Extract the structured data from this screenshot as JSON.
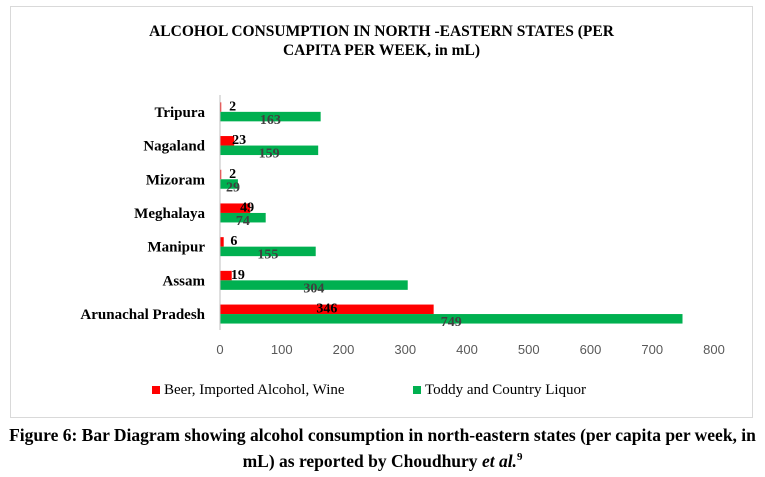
{
  "chart_data": {
    "type": "bar",
    "orientation": "horizontal",
    "title_line1": "ALCOHOL CONSUMPTION IN NORTH -EASTERN STATES (PER",
    "title_line2": "CAPITA PER WEEK, in mL)",
    "categories": [
      "Tripura",
      "Nagaland",
      "Mizoram",
      "Meghalaya",
      "Manipur",
      "Assam",
      "Arunachal Pradesh"
    ],
    "series": [
      {
        "name": "Beer, Imported Alcohol, Wine",
        "color": "#ff0000",
        "values": [
          2,
          23,
          2,
          49,
          6,
          19,
          346
        ]
      },
      {
        "name": "Toddy and Country Liquor",
        "color": "#00b050",
        "values": [
          163,
          159,
          29,
          74,
          155,
          304,
          749
        ]
      }
    ],
    "xlim": [
      0,
      800
    ],
    "xticks": [
      0,
      100,
      200,
      300,
      400,
      500,
      600,
      700,
      800
    ],
    "legend_position": "bottom",
    "grid": false
  },
  "caption": {
    "main": "Figure 6: Bar Diagram showing alcohol consumption in north-eastern states (per capita per week, in mL) as reported by Choudhury ",
    "italic": "et al.",
    "ref": "9"
  }
}
